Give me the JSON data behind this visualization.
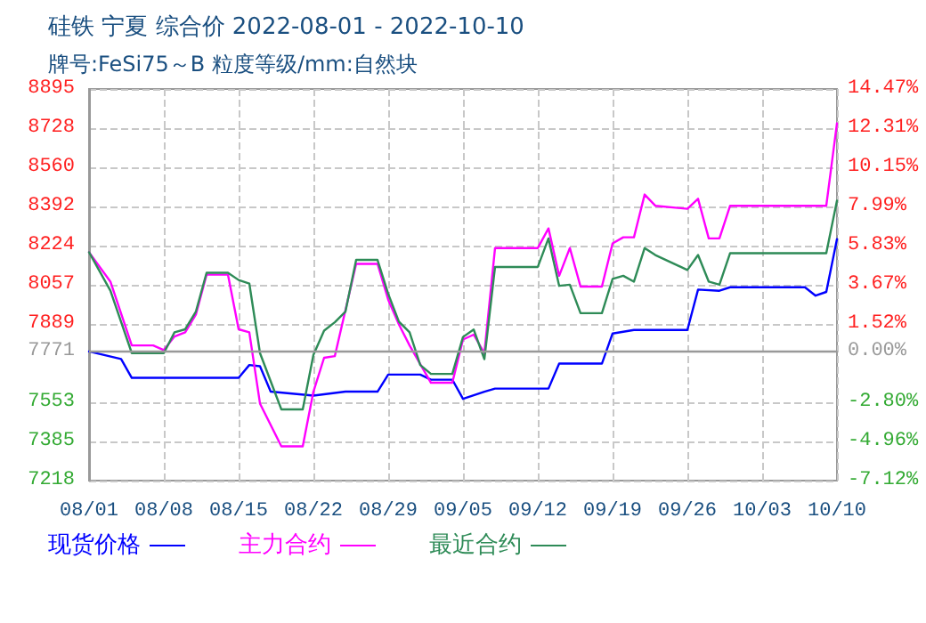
{
  "chart_data": {
    "type": "line",
    "title": "硅铁 宁夏 综合价 2022-08-01 - 2022-10-10",
    "subtitle": "牌号:FeSi75～B 粒度等级/mm:自然块",
    "series": [
      {
        "name": "现货价格",
        "color": "#0000ff",
        "x": [
          "2022-08-01",
          "2022-08-04",
          "2022-08-05",
          "2022-08-15",
          "2022-08-16",
          "2022-08-17",
          "2022-08-18",
          "2022-08-22",
          "2022-08-25",
          "2022-08-28",
          "2022-08-29",
          "2022-09-01",
          "2022-09-02",
          "2022-09-04",
          "2022-09-05",
          "2022-09-07",
          "2022-09-08",
          "2022-09-13",
          "2022-09-14",
          "2022-09-18",
          "2022-09-19",
          "2022-09-21",
          "2022-09-26",
          "2022-09-27",
          "2022-09-29",
          "2022-09-30",
          "2022-10-07",
          "2022-10-08",
          "2022-10-09",
          "2022-10-10"
        ],
        "values": [
          7771,
          7739,
          7658,
          7658,
          7713,
          7708,
          7599,
          7582,
          7599,
          7599,
          7672,
          7672,
          7650,
          7650,
          7568,
          7599,
          7612,
          7612,
          7719,
          7719,
          7848,
          7863,
          7863,
          8036,
          8031,
          8046,
          8046,
          8010,
          8026,
          8252
        ]
      },
      {
        "name": "主力合约",
        "color": "#ff00ff",
        "x": [
          "2022-08-01",
          "2022-08-03",
          "2022-08-05",
          "2022-08-07",
          "2022-08-08",
          "2022-08-09",
          "2022-08-10",
          "2022-08-11",
          "2022-08-12",
          "2022-08-14",
          "2022-08-15",
          "2022-08-16",
          "2022-08-17",
          "2022-08-19",
          "2022-08-21",
          "2022-08-22",
          "2022-08-23",
          "2022-08-24",
          "2022-08-26",
          "2022-08-28",
          "2022-08-29",
          "2022-08-30",
          "2022-08-31",
          "2022-09-02",
          "2022-09-04",
          "2022-09-05",
          "2022-09-06",
          "2022-09-07",
          "2022-09-08",
          "2022-09-12",
          "2022-09-13",
          "2022-09-14",
          "2022-09-15",
          "2022-09-16",
          "2022-09-18",
          "2022-09-19",
          "2022-09-20",
          "2022-09-21",
          "2022-09-22",
          "2022-09-23",
          "2022-09-26",
          "2022-09-27",
          "2022-09-28",
          "2022-09-29",
          "2022-09-30",
          "2022-10-09",
          "2022-10-10"
        ],
        "values": [
          8196,
          8070,
          7797,
          7797,
          7777,
          7835,
          7853,
          7929,
          8100,
          8100,
          7866,
          7853,
          7548,
          7365,
          7365,
          7599,
          7744,
          7751,
          8146,
          8146,
          7993,
          7887,
          7797,
          7637,
          7637,
          7822,
          7843,
          7764,
          8214,
          8214,
          8298,
          8095,
          8214,
          8049,
          8049,
          8234,
          8260,
          8260,
          8443,
          8395,
          8382,
          8425,
          8255,
          8255,
          8395,
          8395,
          8748
        ]
      },
      {
        "name": "最近合约",
        "color": "#2e8b57",
        "x": [
          "2022-08-01",
          "2022-08-03",
          "2022-08-05",
          "2022-08-08",
          "2022-08-09",
          "2022-08-10",
          "2022-08-11",
          "2022-08-12",
          "2022-08-14",
          "2022-08-15",
          "2022-08-16",
          "2022-08-17",
          "2022-08-19",
          "2022-08-21",
          "2022-08-22",
          "2022-08-23",
          "2022-08-24",
          "2022-08-25",
          "2022-08-26",
          "2022-08-28",
          "2022-08-29",
          "2022-08-30",
          "2022-08-31",
          "2022-09-01",
          "2022-09-02",
          "2022-09-04",
          "2022-09-05",
          "2022-09-06",
          "2022-09-07",
          "2022-09-08",
          "2022-09-12",
          "2022-09-13",
          "2022-09-14",
          "2022-09-15",
          "2022-09-16",
          "2022-09-18",
          "2022-09-19",
          "2022-09-20",
          "2022-09-21",
          "2022-09-22",
          "2022-09-23",
          "2022-09-26",
          "2022-09-27",
          "2022-09-28",
          "2022-09-29",
          "2022-09-30",
          "2022-10-09",
          "2022-10-10"
        ],
        "values": [
          8196,
          8031,
          7764,
          7764,
          7853,
          7866,
          7942,
          8108,
          8108,
          8077,
          8062,
          7764,
          7523,
          7523,
          7756,
          7860,
          7896,
          7942,
          8163,
          8163,
          8018,
          7899,
          7853,
          7713,
          7675,
          7675,
          7833,
          7865,
          7738,
          8133,
          8133,
          8255,
          8052,
          8057,
          7935,
          7935,
          8082,
          8095,
          8070,
          8214,
          8184,
          8120,
          8184,
          8070,
          8057,
          8192,
          8192,
          8417
        ]
      }
    ],
    "xlim": [
      "2022-08-01",
      "2022-10-10"
    ],
    "xticks": [
      {
        "value": "2022-08-01",
        "label": "08/01"
      },
      {
        "value": "2022-08-08",
        "label": "08/08"
      },
      {
        "value": "2022-08-15",
        "label": "08/15"
      },
      {
        "value": "2022-08-22",
        "label": "08/22"
      },
      {
        "value": "2022-08-29",
        "label": "08/29"
      },
      {
        "value": "2022-09-05",
        "label": "09/05"
      },
      {
        "value": "2022-09-12",
        "label": "09/12"
      },
      {
        "value": "2022-09-19",
        "label": "09/19"
      },
      {
        "value": "2022-09-26",
        "label": "09/26"
      },
      {
        "value": "2022-10-03",
        "label": "10/03"
      },
      {
        "value": "2022-10-10",
        "label": "10/10"
      }
    ],
    "ylim": [
      7218,
      8895
    ],
    "yticks": [
      7218,
      7385,
      7553,
      7771,
      7889,
      8057,
      8224,
      8392,
      8560,
      8728,
      8895
    ],
    "y2lim": [
      -7.12,
      14.47
    ],
    "y2ticks": [
      {
        "value": -7.12,
        "label": "-7.12%"
      },
      {
        "value": -4.96,
        "label": "-4.96%"
      },
      {
        "value": -2.8,
        "label": "-2.80%"
      },
      {
        "value": 0,
        "label": "0.00%"
      },
      {
        "value": 1.52,
        "label": "1.52%"
      },
      {
        "value": 3.67,
        "label": "3.67%"
      },
      {
        "value": 5.83,
        "label": "5.83%"
      },
      {
        "value": 7.99,
        "label": "7.99%"
      },
      {
        "value": 10.15,
        "label": "10.15%"
      },
      {
        "value": 12.31,
        "label": "12.31%"
      },
      {
        "value": 14.47,
        "label": "14.47%"
      }
    ],
    "ref_lines": [
      {
        "axis": "y",
        "value": 7771,
        "color": "#999999"
      }
    ],
    "grid": true,
    "legend": "bottom left",
    "marker": "none",
    "line_style": "solid"
  }
}
